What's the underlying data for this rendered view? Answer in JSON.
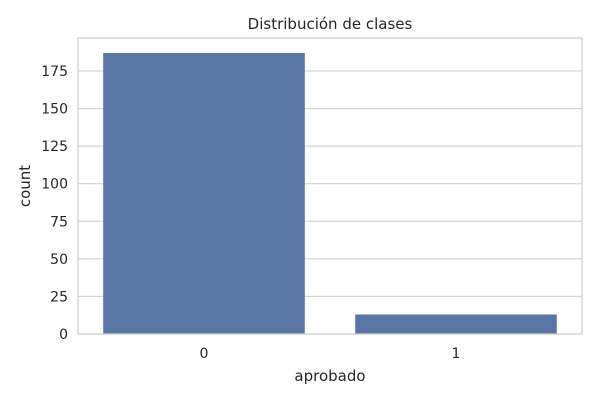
{
  "chart_data": {
    "type": "bar",
    "title": "Distribución de clases",
    "xlabel": "aprobado",
    "ylabel": "count",
    "categories": [
      "0",
      "1"
    ],
    "values": [
      187,
      13
    ],
    "ylim": [
      0,
      197
    ],
    "yticks": [
      "0",
      "25",
      "50",
      "75",
      "100",
      "125",
      "150",
      "175"
    ],
    "grid": true,
    "colors": {
      "bar": "#5975a4",
      "grid": "#cccccc",
      "frame": "#cccccc",
      "text": "#262626"
    }
  }
}
